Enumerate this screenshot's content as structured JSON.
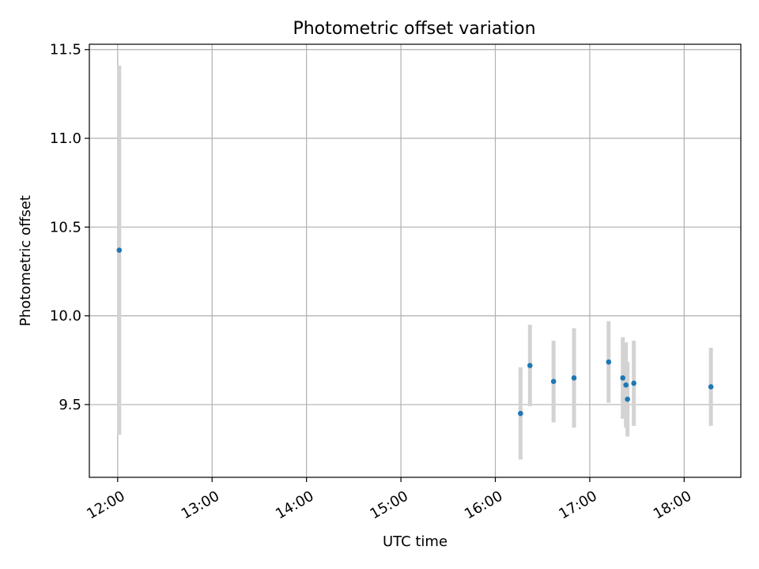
{
  "chart_data": {
    "type": "scatter",
    "title": "Photometric offset variation",
    "xlabel": "UTC time",
    "ylabel": "Photometric offset",
    "x_tick_labels": [
      "12:00",
      "13:00",
      "14:00",
      "15:00",
      "16:00",
      "17:00",
      "18:00"
    ],
    "y_tick_labels": [
      "9.5",
      "10.0",
      "10.5",
      "11.0",
      "11.5"
    ],
    "xlim": [
      "11:42",
      "18:36"
    ],
    "ylim": [
      9.09,
      11.53
    ],
    "grid": true,
    "colors": {
      "point": "#1f77b4",
      "errorbar": "#d3d3d3",
      "grid": "#b0b0b0"
    },
    "series": [
      {
        "points": [
          {
            "x": "12:01",
            "y": 10.37,
            "err": 1.04
          },
          {
            "x": "16:16",
            "y": 9.45,
            "err": 0.26
          },
          {
            "x": "16:22",
            "y": 9.72,
            "err": 0.23
          },
          {
            "x": "16:37",
            "y": 9.63,
            "err": 0.23
          },
          {
            "x": "16:50",
            "y": 9.65,
            "err": 0.28
          },
          {
            "x": "17:12",
            "y": 9.74,
            "err": 0.23
          },
          {
            "x": "17:21",
            "y": 9.65,
            "err": 0.23
          },
          {
            "x": "17:23",
            "y": 9.61,
            "err": 0.24
          },
          {
            "x": "17:24",
            "y": 9.53,
            "err": 0.21
          },
          {
            "x": "17:28",
            "y": 9.62,
            "err": 0.24
          },
          {
            "x": "18:17",
            "y": 9.6,
            "err": 0.22
          }
        ]
      }
    ]
  }
}
